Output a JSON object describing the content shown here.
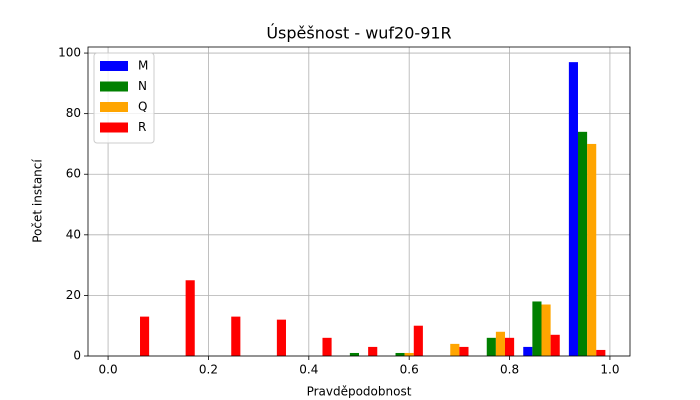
{
  "chart_data": {
    "type": "histogram",
    "title": "Úspěšnost - wuf20-91R",
    "xlabel": "Pravděpodobnost",
    "ylabel": "Počet instancí",
    "bins": [
      0,
      0.0909,
      0.1818,
      0.2727,
      0.3636,
      0.4545,
      0.5455,
      0.6364,
      0.7273,
      0.8182,
      0.9091,
      1.0
    ],
    "series": [
      {
        "name": "M",
        "color": "#0000ff",
        "values": [
          0,
          0,
          0,
          0,
          0,
          0,
          0,
          0,
          0,
          3,
          97
        ]
      },
      {
        "name": "N",
        "color": "#008000",
        "values": [
          0,
          0,
          0,
          0,
          0,
          1,
          1,
          0,
          6,
          18,
          74
        ]
      },
      {
        "name": "Q",
        "color": "#ffa500",
        "values": [
          0,
          0,
          0,
          0,
          0,
          0,
          1,
          4,
          8,
          17,
          70
        ]
      },
      {
        "name": "R",
        "color": "#ff0000",
        "values": [
          13,
          25,
          13,
          12,
          6,
          3,
          10,
          3,
          6,
          7,
          2
        ]
      }
    ],
    "xlim": [
      -0.04,
      1.04
    ],
    "ylim": [
      0,
      102
    ],
    "xticks": [
      {
        "value": 0,
        "label": "0.0"
      },
      {
        "value": 0.2,
        "label": "0.2"
      },
      {
        "value": 0.4,
        "label": "0.4"
      },
      {
        "value": 0.6,
        "label": "0.6"
      },
      {
        "value": 0.8,
        "label": "0.8"
      },
      {
        "value": 1.0,
        "label": "1.0"
      }
    ],
    "yticks": [
      0,
      20,
      40,
      60,
      80,
      100
    ],
    "grid": true,
    "legend": "upper left"
  }
}
